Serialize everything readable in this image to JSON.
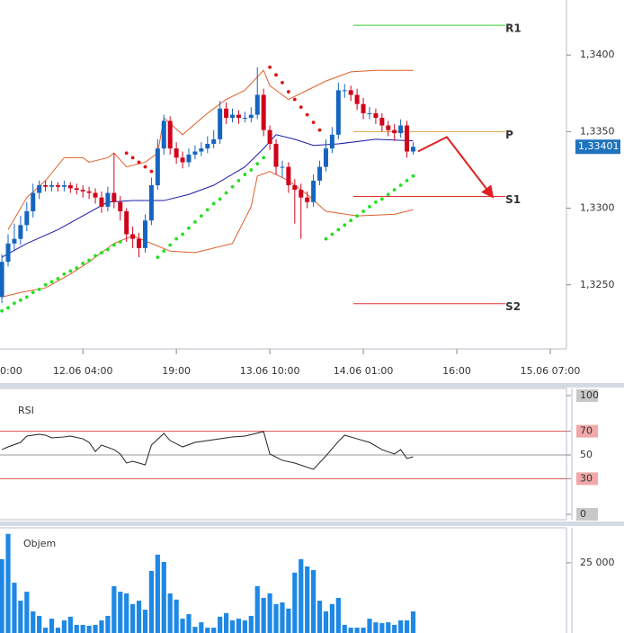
{
  "chart_data": [
    {
      "type": "candlestick",
      "x": [
        0,
        1,
        2,
        3,
        4,
        5,
        6,
        7,
        8,
        9,
        10,
        11,
        12,
        13,
        14,
        15,
        16,
        17,
        18,
        19,
        20,
        21,
        22,
        23,
        24,
        25,
        26,
        27,
        28,
        29,
        30,
        31,
        32,
        33,
        34,
        35,
        36,
        37,
        38,
        39,
        40,
        41,
        42,
        43,
        44,
        45,
        46,
        47,
        48,
        49,
        50,
        51,
        52,
        53,
        54,
        55,
        56,
        57,
        58,
        59,
        60,
        61,
        62,
        63,
        64,
        65,
        66
      ],
      "open": [
        1.3242,
        1.3265,
        1.3277,
        1.328,
        1.3289,
        1.3298,
        1.331,
        1.3315,
        1.3314,
        1.3315,
        1.3314,
        1.3315,
        1.3313,
        1.3312,
        1.3311,
        1.331,
        1.3307,
        1.3301,
        1.331,
        1.3304,
        1.3298,
        1.3283,
        1.328,
        1.3274,
        1.3292,
        1.3315,
        1.3339,
        1.3357,
        1.3339,
        1.3333,
        1.333,
        1.3335,
        1.3337,
        1.3339,
        1.3342,
        1.3345,
        1.3365,
        1.3359,
        1.3361,
        1.3359,
        1.3359,
        1.3361,
        1.3374,
        1.3351,
        1.3342,
        1.3327,
        1.3327,
        1.3315,
        1.3312,
        1.3307,
        1.3304,
        1.3318,
        1.3327,
        1.3339,
        1.3348,
        1.3377,
        1.3377,
        1.3374,
        1.3368,
        1.3362,
        1.3362,
        1.3359,
        1.3354,
        1.3351,
        1.3349,
        1.3354,
        1.3337
      ],
      "high": [
        1.327,
        1.3283,
        1.329,
        1.3295,
        1.3304,
        1.3316,
        1.3318,
        1.3318,
        1.3318,
        1.3317,
        1.3318,
        1.3317,
        1.3316,
        1.3315,
        1.3314,
        1.3313,
        1.3311,
        1.3314,
        1.3336,
        1.3308,
        1.33,
        1.3288,
        1.3284,
        1.3296,
        1.332,
        1.3345,
        1.3361,
        1.336,
        1.3343,
        1.3337,
        1.3339,
        1.3341,
        1.3343,
        1.3347,
        1.3351,
        1.337,
        1.3369,
        1.3365,
        1.3364,
        1.3363,
        1.3366,
        1.3392,
        1.3378,
        1.3354,
        1.3345,
        1.3331,
        1.333,
        1.3319,
        1.3316,
        1.3311,
        1.3322,
        1.3331,
        1.3345,
        1.3353,
        1.3382,
        1.3381,
        1.338,
        1.3378,
        1.3372,
        1.3366,
        1.3365,
        1.3362,
        1.3357,
        1.3355,
        1.3358,
        1.3357,
        1.3343
      ],
      "low": [
        1.3238,
        1.3262,
        1.3272,
        1.3276,
        1.3285,
        1.3294,
        1.3306,
        1.3311,
        1.3311,
        1.3311,
        1.3311,
        1.331,
        1.3309,
        1.3307,
        1.3306,
        1.3303,
        1.3297,
        1.3298,
        1.33,
        1.3292,
        1.3278,
        1.3274,
        1.3268,
        1.3271,
        1.3289,
        1.3312,
        1.3335,
        1.3335,
        1.3329,
        1.3326,
        1.3327,
        1.3332,
        1.3334,
        1.3336,
        1.3339,
        1.3342,
        1.3355,
        1.3356,
        1.3355,
        1.3356,
        1.3356,
        1.3358,
        1.3347,
        1.3338,
        1.3322,
        1.332,
        1.331,
        1.329,
        1.328,
        1.33,
        1.3301,
        1.3315,
        1.3324,
        1.3336,
        1.3345,
        1.3372,
        1.337,
        1.3364,
        1.3358,
        1.3358,
        1.3355,
        1.335,
        1.3347,
        1.3344,
        1.3346,
        1.3333,
        1.3335
      ],
      "close": [
        1.3265,
        1.3277,
        1.328,
        1.3289,
        1.3298,
        1.331,
        1.3315,
        1.3314,
        1.3315,
        1.3314,
        1.3315,
        1.3313,
        1.3312,
        1.3311,
        1.331,
        1.3307,
        1.3301,
        1.331,
        1.3304,
        1.3298,
        1.3283,
        1.328,
        1.3274,
        1.3292,
        1.3315,
        1.3339,
        1.3357,
        1.3339,
        1.3333,
        1.333,
        1.3335,
        1.3337,
        1.3339,
        1.3342,
        1.3345,
        1.3365,
        1.3359,
        1.3361,
        1.3359,
        1.3359,
        1.3361,
        1.3374,
        1.3351,
        1.3342,
        1.3327,
        1.3327,
        1.3315,
        1.3312,
        1.3307,
        1.3304,
        1.3318,
        1.3327,
        1.3339,
        1.3348,
        1.3377,
        1.3377,
        1.3374,
        1.3368,
        1.3362,
        1.3362,
        1.3359,
        1.3354,
        1.3351,
        1.3349,
        1.3354,
        1.3337,
        1.33401
      ],
      "up_color": "#1565c0",
      "down_color": "#d0021b",
      "overlays": [
        {
          "color": "#e0602c",
          "x": [
            1,
            4,
            7,
            10,
            13,
            14,
            17,
            18,
            20,
            23,
            25,
            26,
            29,
            33,
            36,
            39,
            42,
            43,
            46,
            49,
            52,
            56,
            60,
            66
          ],
          "values": [
            1.3286,
            1.3307,
            1.3318,
            1.3333,
            1.3333,
            1.333,
            1.3333,
            1.3336,
            1.3327,
            1.333,
            1.3336,
            1.3359,
            1.3348,
            1.3362,
            1.3371,
            1.3377,
            1.339,
            1.338,
            1.3371,
            1.3377,
            1.3383,
            1.3389,
            1.339,
            1.339
          ]
        },
        {
          "color": "#e0602c",
          "x": [
            0,
            3,
            7,
            11,
            14,
            18,
            21,
            24,
            27,
            31,
            37,
            40,
            41,
            43,
            46,
            49,
            52,
            57,
            63,
            66
          ],
          "values": [
            1.3242,
            1.3245,
            1.3248,
            1.3257,
            1.3265,
            1.3277,
            1.3282,
            1.3277,
            1.3272,
            1.3271,
            1.3277,
            1.3301,
            1.3321,
            1.3324,
            1.3318,
            1.3309,
            1.3298,
            1.3295,
            1.3296,
            1.3299
          ]
        },
        {
          "color": "#1a1aa8",
          "x": [
            0,
            4,
            9,
            13,
            17,
            21,
            26,
            30,
            34,
            39,
            42,
            44,
            47,
            50,
            54,
            60,
            66
          ],
          "values": [
            1.3268,
            1.3277,
            1.3286,
            1.3295,
            1.3304,
            1.3305,
            1.3305,
            1.3309,
            1.3315,
            1.3327,
            1.3339,
            1.3348,
            1.3345,
            1.3341,
            1.3342,
            1.3345,
            1.3344
          ]
        }
      ],
      "sar": [
        {
          "color": "#22e022",
          "x": [
            0,
            1,
            2,
            3,
            4,
            5,
            6,
            7,
            8,
            9,
            10,
            11,
            12,
            13,
            14,
            15,
            16,
            17,
            18,
            19,
            25,
            26,
            27,
            28,
            29,
            30,
            31,
            32,
            33,
            34,
            35,
            36,
            37,
            38,
            39,
            40,
            41,
            42,
            52,
            53,
            54,
            55,
            56,
            57,
            58,
            59,
            60,
            61,
            62,
            63,
            64,
            65,
            66
          ],
          "values": [
            1.3233,
            1.3235,
            1.3238,
            1.324,
            1.3242,
            1.3245,
            1.3247,
            1.325,
            1.3252,
            1.3254,
            1.3257,
            1.3259,
            1.3261,
            1.3264,
            1.3266,
            1.3269,
            1.3271,
            1.3273,
            1.3276,
            1.3278,
            1.3268,
            1.3272,
            1.3276,
            1.328,
            1.3283,
            1.3287,
            1.3291,
            1.3295,
            1.3299,
            1.3303,
            1.3306,
            1.331,
            1.3314,
            1.3318,
            1.3322,
            1.3325,
            1.3329,
            1.3333,
            1.328,
            1.3283,
            1.3286,
            1.3289,
            1.3292,
            1.3295,
            1.3298,
            1.3301,
            1.3304,
            1.3306,
            1.3309,
            1.3312,
            1.3315,
            1.3318,
            1.3321
          ]
        },
        {
          "color": "#e01010",
          "x": [
            20,
            21,
            22,
            23,
            24,
            43,
            44,
            45,
            46,
            47,
            48,
            49,
            50,
            51
          ],
          "values": [
            1.3336,
            1.3333,
            1.333,
            1.3327,
            1.3324,
            1.3392,
            1.3387,
            1.3382,
            1.3376,
            1.3371,
            1.3366,
            1.3361,
            1.3356,
            1.3351
          ]
        }
      ],
      "levels": [
        {
          "label": "R1",
          "value": 1.34194,
          "x": [
            56.4,
            80.8
          ],
          "color": "#33cc33"
        },
        {
          "label": "P",
          "value": 1.335,
          "x": [
            56.4,
            80.8
          ],
          "color": "#e0a040"
        },
        {
          "label": "S1",
          "value": 1.33077,
          "x": [
            56.4,
            80.8
          ],
          "color": "#e03030"
        },
        {
          "label": "S2",
          "value": 1.32377,
          "x": [
            56.4,
            80.8
          ],
          "color": "#e03030"
        }
      ],
      "projection": {
        "color": "#e02020",
        "x": [
          66.8,
          71.4,
          78.7
        ],
        "values": [
          1.33371,
          1.33465,
          1.33077
        ]
      },
      "last_price": {
        "value": 1.33401,
        "label": "1,33401",
        "color": "#1e73be"
      },
      "xlim": [
        -0.3,
        90.6
      ],
      "ylim": [
        1.32082,
        1.34359
      ],
      "xticks": [
        {
          "value": -2,
          "label": "0:00"
        },
        {
          "value": 13,
          "label": "12.06 04:00"
        },
        {
          "value": 28,
          "label": "19:00"
        },
        {
          "value": 43,
          "label": "13.06 10:00"
        },
        {
          "value": 58,
          "label": "14.06 01:00"
        },
        {
          "value": 73,
          "label": "16:00"
        },
        {
          "value": 88,
          "label": "15.06 07:00"
        }
      ],
      "yticks": [
        {
          "value": 1.34,
          "label": "1,3400"
        },
        {
          "value": 1.335,
          "label": "1,3350"
        },
        {
          "value": 1.33,
          "label": "1,3300"
        },
        {
          "value": 1.325,
          "label": "1,3250"
        }
      ]
    },
    {
      "type": "line",
      "title": "RSI",
      "color": "#222222",
      "x": [
        0,
        1,
        3,
        4,
        6,
        7,
        8,
        10,
        11,
        13,
        14,
        15,
        16,
        18,
        19,
        20,
        21,
        23,
        24,
        26,
        27,
        29,
        31,
        33,
        35,
        37,
        39,
        42,
        43,
        45,
        47,
        50,
        52,
        54,
        55,
        57,
        59,
        61,
        63,
        64,
        65,
        66
      ],
      "values": [
        54.5,
        56.8,
        60.6,
        65.9,
        67.4,
        66.7,
        64.4,
        65.2,
        65.9,
        63.6,
        60.6,
        53.0,
        58.3,
        54.5,
        50.8,
        43.2,
        44.7,
        41.7,
        58.3,
        68.2,
        62.1,
        56.8,
        60.6,
        62.1,
        63.6,
        65.2,
        65.9,
        69.7,
        50.8,
        45.5,
        43.2,
        37.9,
        49.2,
        61.4,
        66.7,
        63.6,
        60.6,
        54.5,
        50.8,
        54.5,
        47.0,
        48.5
      ],
      "xlim": [
        -0.3,
        90.6
      ],
      "ylim": [
        0,
        100
      ],
      "yticks": [
        0,
        30,
        50,
        70,
        100
      ],
      "grid_colors": [
        null,
        "#e05050",
        "#999999",
        "#e05050",
        null
      ],
      "tick_label_bg": [
        "#c8c8c8",
        "#f2a8a8",
        null,
        "#f2a8a8",
        "#c8c8c8"
      ]
    },
    {
      "type": "bar",
      "title": "Objem",
      "color": "#1e88e5",
      "x": [
        0,
        1,
        2,
        3,
        4,
        5,
        6,
        7,
        8,
        9,
        10,
        11,
        12,
        13,
        14,
        15,
        16,
        17,
        18,
        19,
        20,
        21,
        22,
        23,
        24,
        25,
        26,
        27,
        28,
        29,
        30,
        31,
        32,
        33,
        34,
        35,
        36,
        37,
        38,
        39,
        40,
        41,
        42,
        43,
        44,
        45,
        46,
        47,
        48,
        49,
        50,
        51,
        52,
        53,
        54,
        55,
        56,
        57,
        58,
        59,
        60,
        61,
        62,
        63,
        64,
        65,
        66
      ],
      "values": [
        26300,
        35300,
        17900,
        11500,
        14700,
        7700,
        6100,
        1900,
        5100,
        1900,
        4500,
        5800,
        2900,
        2900,
        2600,
        2900,
        4500,
        6100,
        16700,
        14700,
        14100,
        10300,
        11500,
        8300,
        22100,
        27900,
        25300,
        14100,
        11900,
        5100,
        6700,
        2200,
        3800,
        1900,
        1900,
        5800,
        7100,
        4500,
        5100,
        4500,
        6100,
        16700,
        12500,
        14100,
        10300,
        10900,
        8700,
        21500,
        26300,
        23700,
        22400,
        11500,
        7700,
        10300,
        12500,
        2900,
        1900,
        1900,
        1900,
        5100,
        3800,
        3500,
        3800,
        2900,
        4500,
        4500,
        7700
      ],
      "xlim": [
        -0.3,
        90.6
      ],
      "ylim": [
        0,
        36500
      ],
      "yticks": [
        {
          "value": 25000,
          "label": "25 000"
        }
      ]
    }
  ]
}
